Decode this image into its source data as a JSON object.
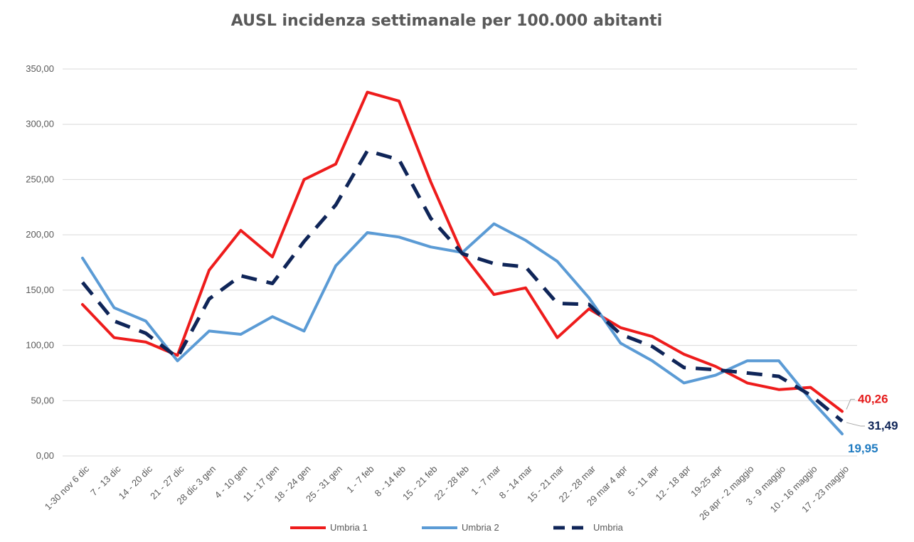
{
  "chart_data": {
    "type": "line",
    "title": "AUSL incidenza settimanale per 100.000 abitanti",
    "xlabel": "",
    "ylabel": "",
    "ylim": [
      0,
      350
    ],
    "yticks": [
      "0,00",
      "50,00",
      "100,00",
      "150,00",
      "200,00",
      "250,00",
      "300,00",
      "350,00"
    ],
    "grid": true,
    "legend_position": "bottom",
    "categories": [
      "1-30 nov 6 dic",
      "7 - 13 dic",
      "14 - 20 dic",
      "21 - 27 dic",
      "28 dic 3 gen",
      "4 - 10 gen",
      "11 - 17 gen",
      "18 - 24 gen",
      "25 - 31 gen",
      "1 - 7 feb",
      "8 - 14 feb",
      "15 - 21 feb",
      "22 - 28 feb",
      "1 - 7 mar",
      "8 - 14 mar",
      "15 - 21 mar",
      "22 - 28 mar",
      "29 mar 4 apr",
      "5 - 11 apr",
      "12 - 18 apr",
      "19-25 apr",
      "26 apr - 2 maggio",
      "3 - 9 maggio",
      "10 - 16 maggio",
      "17 - 23 maggio"
    ],
    "series": [
      {
        "name": "Umbria 1",
        "color": "#ee1c1c",
        "dash": "solid",
        "values": [
          137,
          107,
          103,
          91,
          168,
          204,
          180,
          250,
          264,
          329,
          321,
          248,
          183,
          146,
          152,
          107,
          133,
          116,
          108,
          92,
          81,
          66,
          60,
          62,
          40.26
        ],
        "end_label": "40,26"
      },
      {
        "name": "Umbria 2",
        "color": "#5b9bd5",
        "dash": "solid",
        "values": [
          179,
          134,
          122,
          86,
          113,
          110,
          126,
          113,
          172,
          202,
          198,
          189,
          184,
          210,
          195,
          176,
          143,
          102,
          86,
          66,
          73,
          86,
          86,
          51,
          19.95
        ],
        "end_label": "19,95"
      },
      {
        "name": "Umbria",
        "color": "#0f2558",
        "dash": "dashed",
        "values": [
          157,
          122,
          111,
          89,
          142,
          163,
          156,
          194,
          227,
          276,
          268,
          215,
          183,
          174,
          171,
          138,
          137,
          110,
          99,
          80,
          78,
          75,
          72,
          55,
          31.49
        ],
        "end_label": "31,49"
      }
    ],
    "end_label_colors": [
      "#e51b1b",
      "#1f7bc1",
      "#0f2558"
    ]
  }
}
